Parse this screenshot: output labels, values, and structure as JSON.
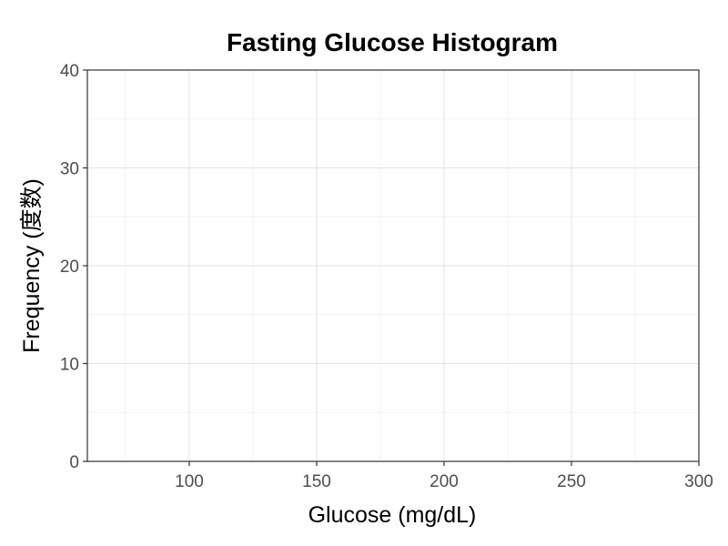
{
  "chart_data": {
    "type": "bar",
    "title": "Fasting Glucose Histogram",
    "xlabel": "Glucose (mg/dL)",
    "ylabel": "Frequency (度数)",
    "xlim": [
      60,
      300
    ],
    "ylim": [
      0,
      40
    ],
    "x_ticks": [
      100,
      150,
      200,
      250,
      300
    ],
    "x_minor_ticks": [
      75,
      125,
      175,
      225,
      275
    ],
    "y_ticks": [
      0,
      10,
      20,
      30,
      40
    ],
    "y_minor_ticks": [
      5,
      15,
      25,
      35
    ],
    "bins": [],
    "grid": true,
    "legend": "none",
    "colors": {
      "grid_major": "#e2e2e2",
      "grid_minor": "#f0f0f0",
      "axis": "#333333",
      "tick_text": "#4d4d4d",
      "title": "#000000"
    }
  }
}
